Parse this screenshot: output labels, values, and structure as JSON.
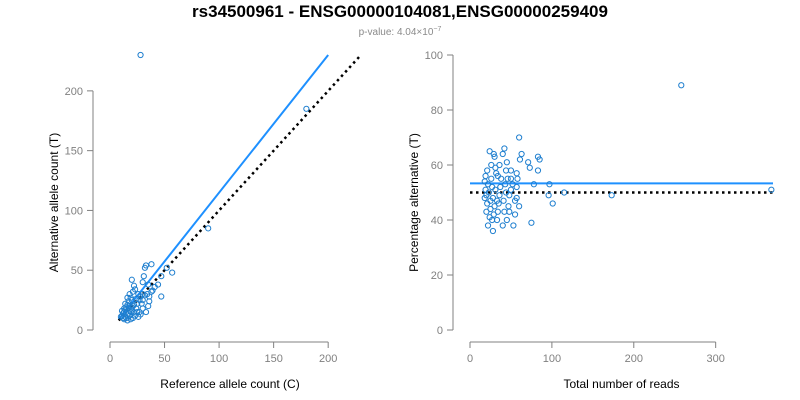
{
  "title": "rs34500961 - ENSG00000104081,ENSG00000259409",
  "subtitle": {
    "prefix": "p-value: 4.04×10",
    "exponent": "−7"
  },
  "colors": {
    "points": "#1f7fcf",
    "fit_line": "#1e90ff",
    "reference_line": "#000000",
    "axis": "#808080"
  },
  "chart_data": [
    {
      "type": "scatter",
      "xlabel": "Reference allele count (C)",
      "ylabel": "Alternative allele count (T)",
      "xlim": [
        0,
        220
      ],
      "ylim": [
        0,
        230
      ],
      "xticks": [
        0,
        50,
        100,
        150,
        200
      ],
      "yticks": [
        0,
        50,
        100,
        150,
        200
      ],
      "grid": false,
      "points": [
        [
          28,
          230
        ],
        [
          180,
          185
        ],
        [
          90,
          85
        ],
        [
          38,
          55
        ],
        [
          47,
          45
        ],
        [
          52,
          52
        ],
        [
          57,
          48
        ],
        [
          47,
          28
        ],
        [
          30,
          40
        ],
        [
          31,
          45
        ],
        [
          35,
          38
        ],
        [
          32,
          52
        ],
        [
          33,
          54
        ],
        [
          30,
          30
        ],
        [
          36,
          28
        ],
        [
          38,
          32
        ],
        [
          35,
          20
        ],
        [
          26,
          30
        ],
        [
          27,
          25
        ],
        [
          28,
          28
        ],
        [
          24,
          26
        ],
        [
          25,
          22
        ],
        [
          29,
          22
        ],
        [
          30,
          18
        ],
        [
          33,
          15
        ],
        [
          27,
          15
        ],
        [
          20,
          42
        ],
        [
          22,
          37
        ],
        [
          18,
          30
        ],
        [
          19,
          27
        ],
        [
          20,
          25
        ],
        [
          17,
          24
        ],
        [
          16,
          27
        ],
        [
          21,
          20
        ],
        [
          15,
          19
        ],
        [
          17,
          18
        ],
        [
          14,
          17
        ],
        [
          13,
          15
        ],
        [
          12,
          14
        ],
        [
          11,
          12
        ],
        [
          12,
          10
        ],
        [
          13,
          9
        ],
        [
          14,
          11
        ],
        [
          16,
          13
        ],
        [
          18,
          12
        ],
        [
          19,
          15
        ],
        [
          20,
          17
        ],
        [
          22,
          15
        ],
        [
          23,
          12
        ],
        [
          21,
          10
        ],
        [
          15,
          10
        ],
        [
          16,
          8
        ],
        [
          10,
          11
        ],
        [
          11,
          16
        ],
        [
          13,
          18
        ],
        [
          14,
          22
        ],
        [
          16,
          21
        ],
        [
          18,
          20
        ],
        [
          20,
          19
        ],
        [
          22,
          21
        ],
        [
          24,
          18
        ],
        [
          25,
          15
        ],
        [
          26,
          11
        ],
        [
          28,
          13
        ],
        [
          30,
          25
        ],
        [
          32,
          29
        ],
        [
          34,
          30
        ],
        [
          36,
          24
        ],
        [
          39,
          33
        ],
        [
          41,
          36
        ],
        [
          44,
          38
        ],
        [
          21,
          32
        ],
        [
          23,
          34
        ],
        [
          17,
          14
        ],
        [
          19,
          9
        ]
      ],
      "lines": [
        {
          "name": "fit",
          "style": "solid",
          "x": [
            8,
            200
          ],
          "y": [
            9,
            230
          ]
        },
        {
          "name": "reference",
          "style": "dotted",
          "x": [
            8,
            230
          ],
          "y": [
            8,
            230
          ]
        }
      ]
    },
    {
      "type": "scatter",
      "xlabel": "Total number of reads",
      "ylabel": "Percentage alternative (T)",
      "xlim": [
        0,
        370
      ],
      "ylim": [
        0,
        100
      ],
      "xticks": [
        0,
        100,
        200,
        300
      ],
      "yticks": [
        0,
        20,
        40,
        60,
        80,
        100
      ],
      "grid": false,
      "points": [
        [
          258,
          89
        ],
        [
          368,
          51
        ],
        [
          173,
          49
        ],
        [
          115,
          50
        ],
        [
          101,
          46
        ],
        [
          97,
          53
        ],
        [
          96,
          49
        ],
        [
          85,
          62
        ],
        [
          83,
          63
        ],
        [
          83,
          58
        ],
        [
          78,
          53
        ],
        [
          73,
          59
        ],
        [
          71,
          61
        ],
        [
          75,
          39
        ],
        [
          60,
          70
        ],
        [
          63,
          64
        ],
        [
          61,
          62
        ],
        [
          57,
          57
        ],
        [
          57,
          52
        ],
        [
          57,
          48
        ],
        [
          60,
          45
        ],
        [
          55,
          42
        ],
        [
          53,
          38
        ],
        [
          52,
          53
        ],
        [
          50,
          55
        ],
        [
          50,
          51
        ],
        [
          48,
          49
        ],
        [
          45,
          61
        ],
        [
          44,
          58
        ],
        [
          46,
          55
        ],
        [
          43,
          53
        ],
        [
          41,
          47
        ],
        [
          42,
          43
        ],
        [
          40,
          38
        ],
        [
          40,
          64
        ],
        [
          42,
          66
        ],
        [
          37,
          52
        ],
        [
          36,
          49
        ],
        [
          35,
          46
        ],
        [
          34,
          43
        ],
        [
          33,
          40
        ],
        [
          31,
          51
        ],
        [
          32,
          57
        ],
        [
          31,
          59
        ],
        [
          30,
          63
        ],
        [
          29,
          64
        ],
        [
          30,
          45
        ],
        [
          29,
          42
        ],
        [
          28,
          48
        ],
        [
          27,
          52
        ],
        [
          26,
          60
        ],
        [
          26,
          55
        ],
        [
          25,
          47
        ],
        [
          25,
          44
        ],
        [
          24,
          41
        ],
        [
          23,
          50
        ],
        [
          22,
          53
        ],
        [
          21,
          58
        ],
        [
          21,
          46
        ],
        [
          20,
          43
        ],
        [
          20,
          49
        ],
        [
          19,
          51
        ],
        [
          19,
          56
        ],
        [
          18,
          54
        ],
        [
          18,
          48
        ],
        [
          38,
          55
        ],
        [
          36,
          60
        ],
        [
          34,
          56
        ],
        [
          33,
          47
        ],
        [
          45,
          40
        ],
        [
          47,
          45
        ],
        [
          55,
          47
        ],
        [
          58,
          55
        ],
        [
          50,
          58
        ],
        [
          48,
          43
        ],
        [
          22,
          38
        ],
        [
          27,
          40
        ],
        [
          44,
          50
        ],
        [
          28,
          36
        ],
        [
          24,
          65
        ]
      ],
      "lines": [
        {
          "name": "fit",
          "style": "solid",
          "x": [
            0,
            370
          ],
          "y": [
            53.3,
            53.3
          ]
        },
        {
          "name": "reference",
          "style": "dotted",
          "x": [
            0,
            370
          ],
          "y": [
            50,
            50
          ]
        }
      ]
    }
  ]
}
